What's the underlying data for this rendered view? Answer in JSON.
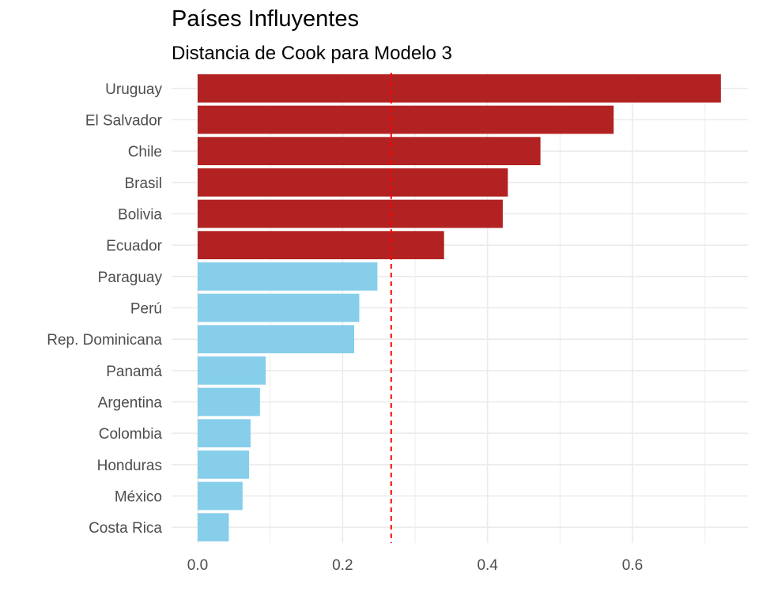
{
  "chart_data": {
    "type": "bar",
    "orientation": "horizontal",
    "title": "Países Influyentes",
    "subtitle": "Distancia de Cook para Modelo 3",
    "xlabel": "",
    "ylabel": "",
    "categories": [
      "Uruguay",
      "El Salvador",
      "Chile",
      "Brasil",
      "Bolivia",
      "Ecuador",
      "Paraguay",
      "Perú",
      "Rep. Dominicana",
      "Panamá",
      "Argentina",
      "Colombia",
      "Honduras",
      "México",
      "Costa Rica"
    ],
    "values": [
      0.722,
      0.574,
      0.473,
      0.428,
      0.421,
      0.34,
      0.248,
      0.223,
      0.216,
      0.094,
      0.086,
      0.073,
      0.071,
      0.062,
      0.043
    ],
    "influential": [
      true,
      true,
      true,
      true,
      true,
      true,
      false,
      false,
      false,
      false,
      false,
      false,
      false,
      false,
      false
    ],
    "xlim": [
      -0.03,
      0.755
    ],
    "xticks": [
      0.0,
      0.2,
      0.4,
      0.6
    ],
    "xtick_labels": [
      "0.0",
      "0.2",
      "0.4",
      "0.6"
    ],
    "threshold": 0.267,
    "grid": true,
    "colors": {
      "influential": "#B22222",
      "normal": "#87CEEB",
      "threshold": "#FF0000",
      "grid": "#EBEBEB"
    }
  }
}
